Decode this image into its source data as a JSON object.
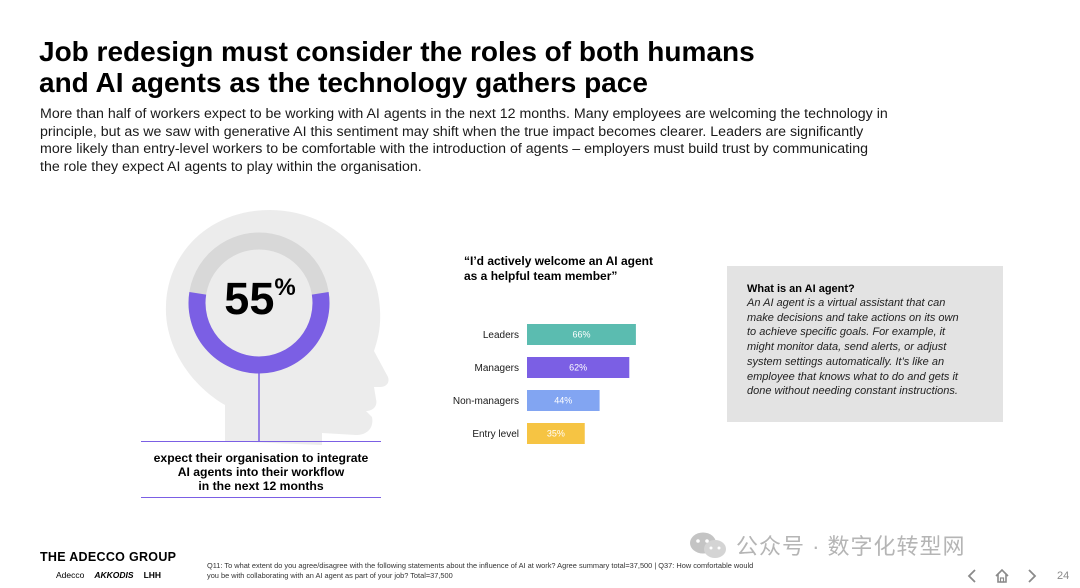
{
  "title": {
    "line1": "Job redesign must consider the roles of both humans",
    "line2": "and AI agents as the technology gathers pace"
  },
  "intro": {
    "lines": [
      "More than half of workers expect to be working with AI agents in the next 12 months. Many employees are welcoming the technology in",
      "principle, but as we saw with generative AI this sentiment may shift when the true impact becomes clearer. Leaders are significantly",
      "more likely than entry-level workers to be comfortable with the introduction of agents – employers must build trust by communicating",
      "the role they expect AI agents to play within the organisation."
    ]
  },
  "stat": {
    "number": "55",
    "symbol": "%",
    "value": 0.55,
    "caption_lines": [
      "expect their organisation to integrate",
      "AI agents into their workflow",
      "in the next 12 months"
    ]
  },
  "chart_data": {
    "type": "bar",
    "orientation": "horizontal",
    "title": "“I’d actively welcome an AI agent as a helpful team member”",
    "title_lines": [
      "“I’d actively welcome an AI agent",
      "as a helpful team member”"
    ],
    "categories": [
      "Leaders",
      "Managers",
      "Non-managers",
      "Entry level"
    ],
    "values": [
      66,
      62,
      44,
      35
    ],
    "value_labels": [
      "66%",
      "62%",
      "44%",
      "35%"
    ],
    "colors": [
      "#5bbcb0",
      "#7b5fe4",
      "#82a5f2",
      "#f6c443"
    ],
    "xlim": [
      0,
      100
    ],
    "grid": false,
    "legend": "none"
  },
  "callout": {
    "title": "What is an AI agent?",
    "body_lines": [
      "An AI agent is a virtual assistant that can",
      "make decisions and take actions on its own",
      "to achieve specific goals. For example, it",
      "might monitor data, send alerts, or adjust",
      "system settings automatically. It’s like an",
      "employee that knows what to do and gets it",
      "done without needing constant instructions."
    ]
  },
  "footer": {
    "brand": "THE ADECCO GROUP",
    "subbrands": [
      "Adecco",
      "AKKODIS",
      "LHH"
    ],
    "footnote_lines": [
      "Q11: To what extent do you agree/disagree with the following statements about the influence of AI at work? Agree summary total=37,500 | Q37: How comfortable would",
      "you be with collaborating with an AI agent as part of your job? Total=37,500"
    ],
    "watermark": "公众号 · 数字化转型网",
    "page_number": "24"
  },
  "colors": {
    "accent_purple": "#7b5fe4",
    "ring_gray": "#d8d8d8",
    "head_gray": "#ececec",
    "callout_bg": "#e3e3e3"
  }
}
